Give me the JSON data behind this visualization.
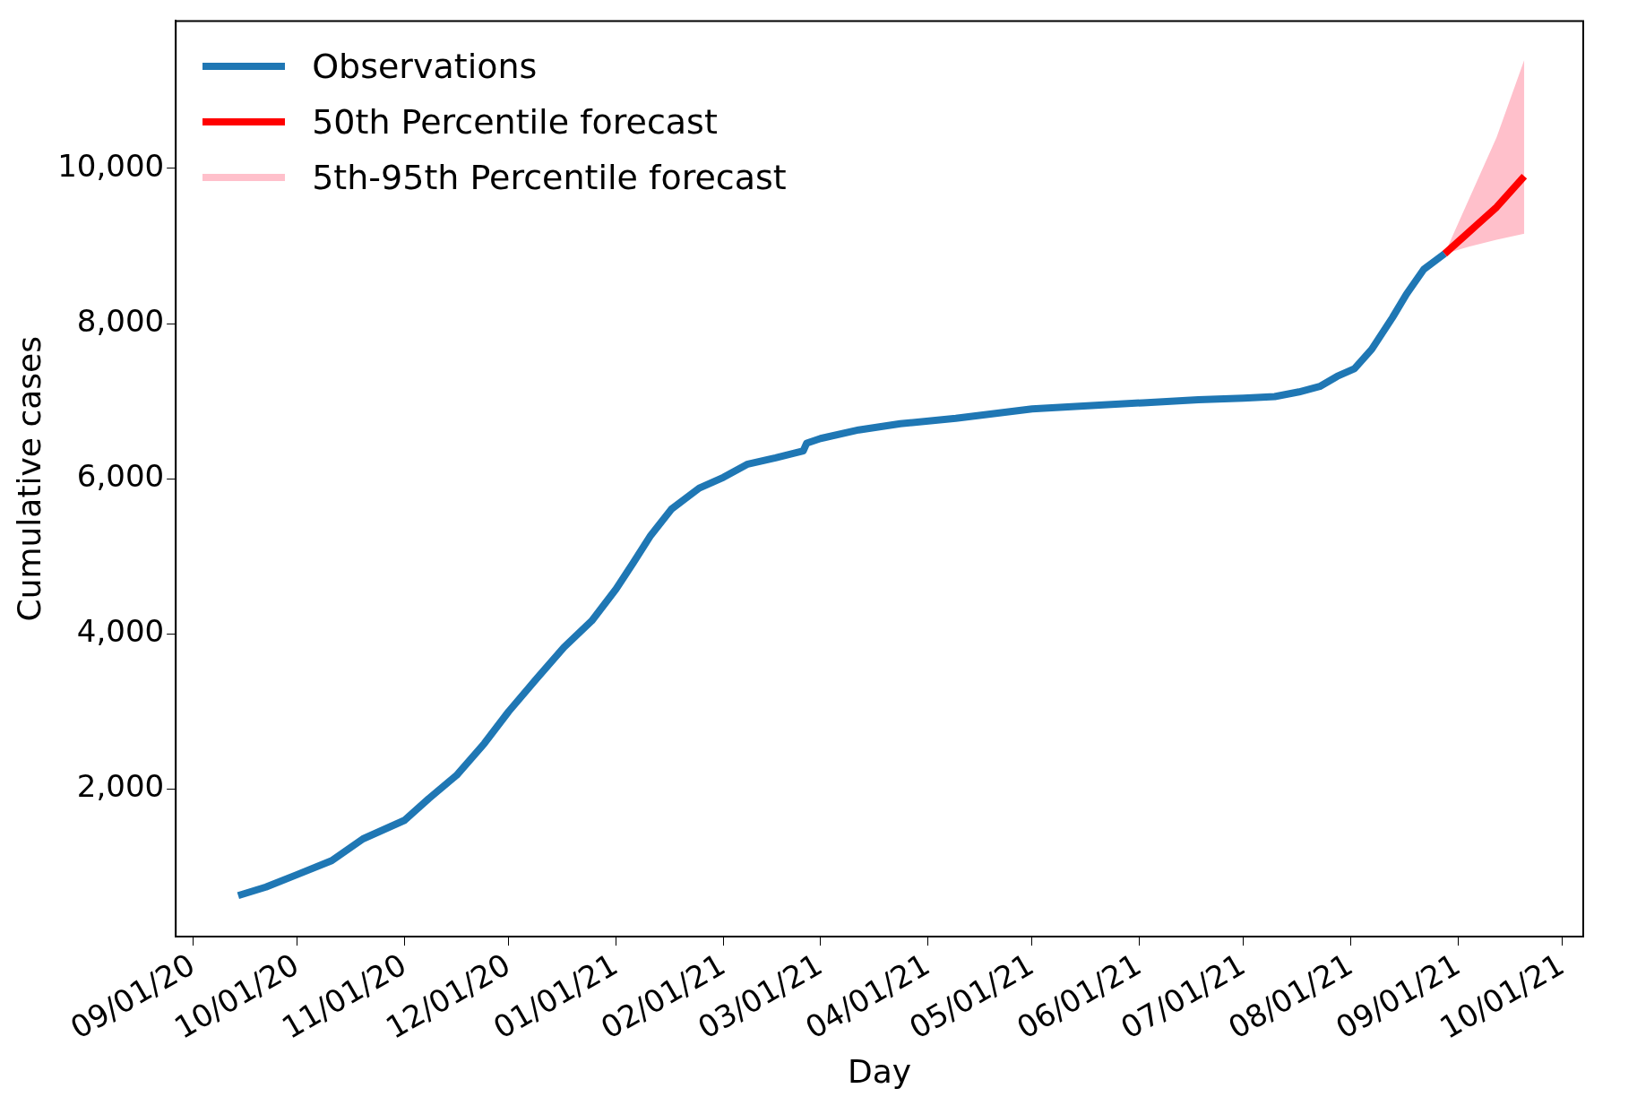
{
  "chart_data": {
    "type": "line",
    "xlabel": "Day",
    "ylabel": "Cumulative cases",
    "legend": "top left",
    "grid": false,
    "marker": "none",
    "line_style": "solid",
    "xlim": [
      "2020-08-27",
      "2021-10-07"
    ],
    "xticks": [
      {
        "value": "2020-09-01",
        "label": "09/01/20"
      },
      {
        "value": "2020-10-01",
        "label": "10/01/20"
      },
      {
        "value": "2020-11-01",
        "label": "11/01/20"
      },
      {
        "value": "2020-12-01",
        "label": "12/01/20"
      },
      {
        "value": "2021-01-01",
        "label": "01/01/21"
      },
      {
        "value": "2021-02-01",
        "label": "02/01/21"
      },
      {
        "value": "2021-03-01",
        "label": "03/01/21"
      },
      {
        "value": "2021-04-01",
        "label": "04/01/21"
      },
      {
        "value": "2021-05-01",
        "label": "05/01/21"
      },
      {
        "value": "2021-06-01",
        "label": "06/01/21"
      },
      {
        "value": "2021-07-01",
        "label": "07/01/21"
      },
      {
        "value": "2021-08-01",
        "label": "08/01/21"
      },
      {
        "value": "2021-09-01",
        "label": "09/01/21"
      },
      {
        "value": "2021-10-01",
        "label": "10/01/21"
      }
    ],
    "ylim": [
      100,
      11900
    ],
    "yticks": [
      {
        "value": 2000,
        "label": "2,000"
      },
      {
        "value": 4000,
        "label": "4,000"
      },
      {
        "value": 6000,
        "label": "6,000"
      },
      {
        "value": 8000,
        "label": "8,000"
      },
      {
        "value": 10000,
        "label": "10,000"
      }
    ],
    "series": [
      {
        "name": "Observations",
        "color": "#1f77b4",
        "x": [
          "2020-09-14",
          "2020-09-22",
          "2020-10-01",
          "2020-10-11",
          "2020-10-20",
          "2020-11-01",
          "2020-11-08",
          "2020-11-16",
          "2020-11-24",
          "2020-12-01",
          "2020-12-09",
          "2020-12-17",
          "2020-12-25",
          "2021-01-01",
          "2021-01-06",
          "2021-01-11",
          "2021-01-17",
          "2021-01-25",
          "2021-02-01",
          "2021-02-08",
          "2021-02-16",
          "2021-02-24",
          "2021-02-25",
          "2021-03-01",
          "2021-03-12",
          "2021-03-24",
          "2021-04-09",
          "2021-05-01",
          "2021-05-17",
          "2021-06-02",
          "2021-06-18",
          "2021-07-01",
          "2021-07-10",
          "2021-07-17",
          "2021-07-23",
          "2021-07-28",
          "2021-08-02",
          "2021-08-07",
          "2021-08-13",
          "2021-08-17",
          "2021-08-22",
          "2021-08-28"
        ],
        "values": [
          630,
          740,
          900,
          1080,
          1360,
          1600,
          1880,
          2180,
          2590,
          3000,
          3420,
          3830,
          4170,
          4580,
          4920,
          5270,
          5610,
          5880,
          6020,
          6190,
          6270,
          6360,
          6460,
          6520,
          6630,
          6710,
          6780,
          6900,
          6940,
          6980,
          7020,
          7040,
          7060,
          7120,
          7190,
          7320,
          7420,
          7670,
          8080,
          8380,
          8700,
          8900
        ]
      },
      {
        "name": "50th Percentile forecast",
        "color": "#ff0000",
        "x": [
          "2021-08-28",
          "2021-09-04",
          "2021-09-12",
          "2021-09-20"
        ],
        "values": [
          8900,
          9180,
          9500,
          9900
        ],
        "lower": [
          8900,
          8990,
          9080,
          9160
        ],
        "upper": [
          8900,
          9600,
          10400,
          11400
        ]
      },
      {
        "name": "5th-95th Percentile forecast",
        "color": "#ffc0cb"
      }
    ]
  }
}
